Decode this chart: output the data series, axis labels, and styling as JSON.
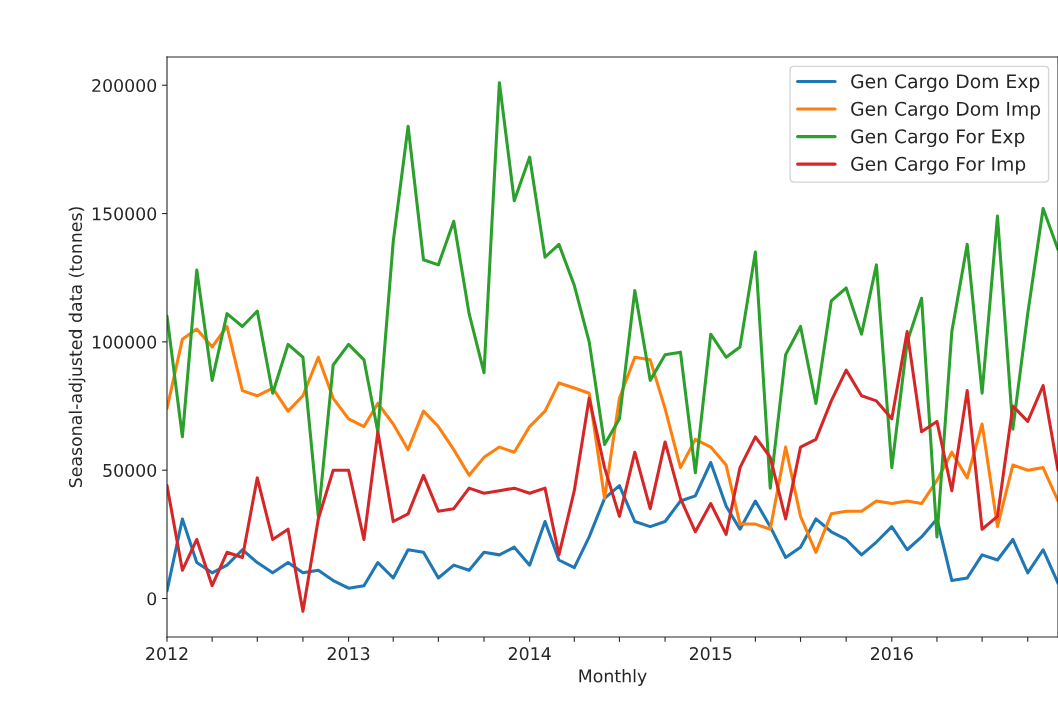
{
  "chart_data": {
    "type": "line",
    "xlabel": "Monthly",
    "ylabel": "Seasonal-adjusted data (tonnes)",
    "x": [
      "2012-01",
      "2012-02",
      "2012-03",
      "2012-04",
      "2012-05",
      "2012-06",
      "2012-07",
      "2012-08",
      "2012-09",
      "2012-10",
      "2012-11",
      "2012-12",
      "2013-01",
      "2013-02",
      "2013-03",
      "2013-04",
      "2013-05",
      "2013-06",
      "2013-07",
      "2013-08",
      "2013-09",
      "2013-10",
      "2013-11",
      "2013-12",
      "2014-01",
      "2014-02",
      "2014-03",
      "2014-04",
      "2014-05",
      "2014-06",
      "2014-07",
      "2014-08",
      "2014-09",
      "2014-10",
      "2014-11",
      "2014-12",
      "2015-01",
      "2015-02",
      "2015-03",
      "2015-04",
      "2015-05",
      "2015-06",
      "2015-07",
      "2015-08",
      "2015-09",
      "2015-10",
      "2015-11",
      "2015-12",
      "2016-01",
      "2016-02",
      "2016-03",
      "2016-04",
      "2016-05",
      "2016-06",
      "2016-07",
      "2016-08",
      "2016-09",
      "2016-10",
      "2016-11",
      "2016-12"
    ],
    "series": [
      {
        "name": "Gen Cargo Dom Exp",
        "color": "#1f77b4",
        "values": [
          3000,
          31000,
          14000,
          10000,
          13000,
          19000,
          14000,
          10000,
          14000,
          10000,
          11000,
          7000,
          4000,
          5000,
          14000,
          8000,
          19000,
          18000,
          8000,
          13000,
          11000,
          18000,
          17000,
          20000,
          13000,
          30000,
          15000,
          12000,
          24000,
          39000,
          44000,
          30000,
          28000,
          30000,
          38000,
          40000,
          53000,
          36000,
          27000,
          38000,
          28000,
          16000,
          20000,
          31000,
          26000,
          23000,
          17000,
          22000,
          28000,
          19000,
          24000,
          31000,
          7000,
          8000,
          17000,
          15000,
          23000,
          10000,
          19000,
          6000
        ]
      },
      {
        "name": "Gen Cargo Dom Imp",
        "color": "#ff7f0e",
        "values": [
          74000,
          101000,
          105000,
          98000,
          106000,
          81000,
          79000,
          82000,
          73000,
          79000,
          94000,
          78000,
          70000,
          67000,
          76000,
          68000,
          58000,
          73000,
          67000,
          58000,
          48000,
          55000,
          59000,
          57000,
          67000,
          73000,
          84000,
          82000,
          80000,
          39000,
          78000,
          94000,
          93000,
          74000,
          51000,
          62000,
          59000,
          52000,
          29000,
          29000,
          27000,
          59000,
          32000,
          18000,
          33000,
          34000,
          34000,
          38000,
          37000,
          38000,
          37000,
          46000,
          57000,
          47000,
          68000,
          28000,
          52000,
          50000,
          51000,
          38000
        ]
      },
      {
        "name": "Gen Cargo For Exp",
        "color": "#2ca02c",
        "values": [
          110000,
          63000,
          128000,
          85000,
          111000,
          106000,
          112000,
          80000,
          99000,
          94000,
          32000,
          91000,
          99000,
          93000,
          65000,
          139000,
          184000,
          132000,
          130000,
          147000,
          111000,
          88000,
          201000,
          155000,
          172000,
          133000,
          138000,
          122000,
          100000,
          60000,
          70000,
          120000,
          85000,
          95000,
          96000,
          49000,
          103000,
          94000,
          98000,
          135000,
          43000,
          95000,
          106000,
          76000,
          116000,
          121000,
          103000,
          130000,
          51000,
          100000,
          117000,
          24000,
          104000,
          138000,
          80000,
          149000,
          66000,
          111000,
          152000,
          136000
        ]
      },
      {
        "name": "Gen Cargo For Imp",
        "color": "#d62728",
        "values": [
          44000,
          11000,
          23000,
          5000,
          18000,
          16000,
          47000,
          23000,
          27000,
          -5000,
          31000,
          50000,
          50000,
          23000,
          65000,
          30000,
          33000,
          48000,
          34000,
          35000,
          43000,
          41000,
          42000,
          43000,
          41000,
          43000,
          17000,
          42000,
          78000,
          51000,
          32000,
          57000,
          35000,
          61000,
          39000,
          26000,
          37000,
          25000,
          51000,
          63000,
          55000,
          31000,
          59000,
          62000,
          77000,
          89000,
          79000,
          77000,
          70000,
          104000,
          65000,
          69000,
          42000,
          81000,
          27000,
          32000,
          75000,
          69000,
          83000,
          50000
        ]
      }
    ],
    "xlim": [
      "2012-01",
      "2016-12"
    ],
    "xticks": [
      {
        "value": "2012-01",
        "label": "2012"
      },
      {
        "value": "2012-04",
        "label": null
      },
      {
        "value": "2012-07",
        "label": null
      },
      {
        "value": "2012-10",
        "label": null
      },
      {
        "value": "2013-01",
        "label": "2013"
      },
      {
        "value": "2013-04",
        "label": null
      },
      {
        "value": "2013-07",
        "label": null
      },
      {
        "value": "2013-10",
        "label": null
      },
      {
        "value": "2014-01",
        "label": "2014"
      },
      {
        "value": "2014-04",
        "label": null
      },
      {
        "value": "2014-07",
        "label": null
      },
      {
        "value": "2014-10",
        "label": null
      },
      {
        "value": "2015-01",
        "label": "2015"
      },
      {
        "value": "2015-04",
        "label": null
      },
      {
        "value": "2015-07",
        "label": null
      },
      {
        "value": "2015-10",
        "label": null
      },
      {
        "value": "2016-01",
        "label": "2016"
      },
      {
        "value": "2016-04",
        "label": null
      },
      {
        "value": "2016-07",
        "label": null
      },
      {
        "value": "2016-10",
        "label": null
      }
    ],
    "ylim": [
      -15000,
      211000
    ],
    "yticks": [
      0,
      50000,
      100000,
      150000,
      200000
    ],
    "grid": false,
    "legend": "top right",
    "marker": "none",
    "line_style": "solid"
  }
}
